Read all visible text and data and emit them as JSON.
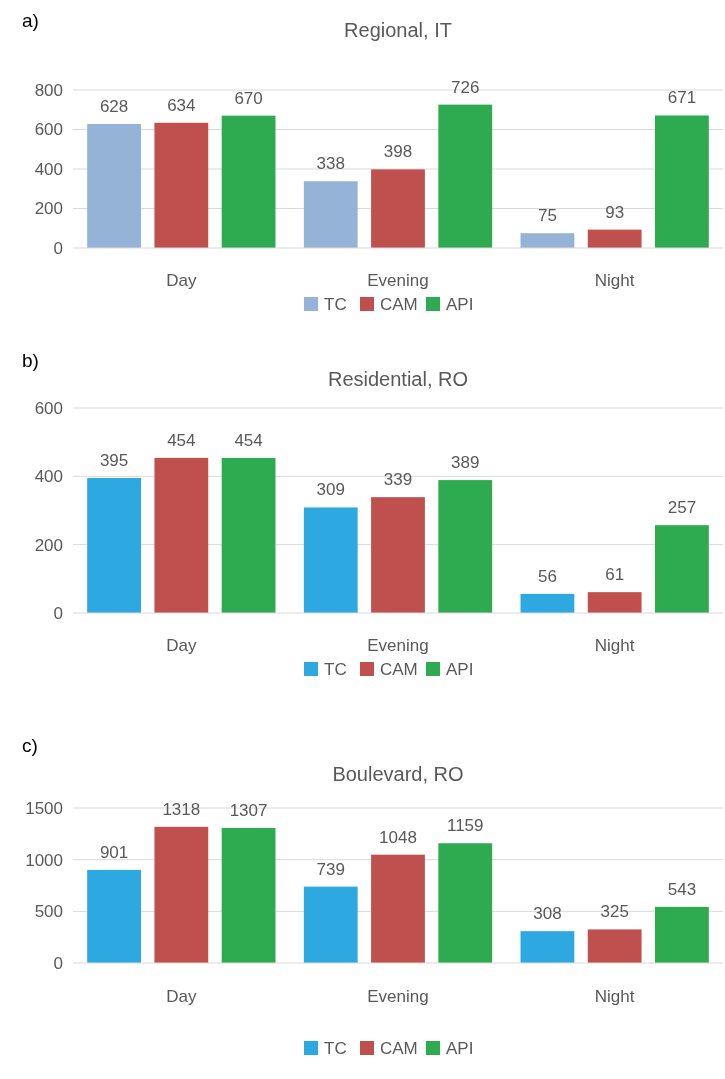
{
  "chart_data": [
    {
      "type": "bar",
      "title": "Regional, IT",
      "annotations": [
        "a)"
      ],
      "categories": [
        "Day",
        "Evening",
        "Night"
      ],
      "series": [
        {
          "name": "TC",
          "color": "#95b3d7",
          "values": [
            628,
            338,
            75
          ]
        },
        {
          "name": "CAM",
          "color": "#c0504d",
          "values": [
            634,
            398,
            93
          ]
        },
        {
          "name": "API",
          "color": "#2eaa50",
          "values": [
            670,
            726,
            671
          ]
        }
      ],
      "ylim": [
        0,
        800
      ],
      "yticks": [
        0,
        200,
        400,
        600,
        800
      ],
      "grid": "y",
      "legend": "bottom",
      "data_labels": true
    },
    {
      "type": "bar",
      "title": "Residential, RO",
      "annotations": [
        "b)"
      ],
      "categories": [
        "Day",
        "Evening",
        "Night"
      ],
      "series": [
        {
          "name": "TC",
          "color": "#2ea8e0",
          "values": [
            395,
            309,
            56
          ]
        },
        {
          "name": "CAM",
          "color": "#c0504d",
          "values": [
            454,
            339,
            61
          ]
        },
        {
          "name": "API",
          "color": "#2eaa50",
          "values": [
            454,
            389,
            257
          ]
        }
      ],
      "ylim": [
        0,
        600
      ],
      "yticks": [
        0,
        200,
        400,
        600
      ],
      "grid": "y",
      "legend": "bottom",
      "data_labels": true
    },
    {
      "type": "bar",
      "title": "Boulevard, RO",
      "annotations": [
        "c)"
      ],
      "categories": [
        "Day",
        "Evening",
        "Night"
      ],
      "series": [
        {
          "name": "TC",
          "color": "#2ea8e0",
          "values": [
            901,
            739,
            308
          ]
        },
        {
          "name": "CAM",
          "color": "#c0504d",
          "values": [
            1318,
            1048,
            325
          ]
        },
        {
          "name": "API",
          "color": "#2eaa50",
          "values": [
            1307,
            1159,
            543
          ]
        }
      ],
      "ylim": [
        0,
        1500
      ],
      "yticks": [
        0,
        500,
        1000,
        1500
      ],
      "grid": "y",
      "legend": "bottom",
      "data_labels": true
    }
  ]
}
